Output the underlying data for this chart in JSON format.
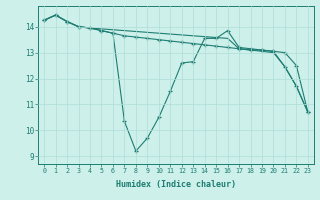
{
  "xlabel": "Humidex (Indice chaleur)",
  "background_color": "#cdf0ea",
  "grid_color": "#b0ddd8",
  "line_color": "#1e7d72",
  "xlim": [
    -0.5,
    23.5
  ],
  "ylim": [
    8.7,
    14.8
  ],
  "xticks": [
    0,
    1,
    2,
    3,
    4,
    5,
    6,
    7,
    8,
    9,
    10,
    11,
    12,
    13,
    14,
    15,
    16,
    17,
    18,
    19,
    20,
    21,
    22,
    23
  ],
  "yticks": [
    9,
    10,
    11,
    12,
    13,
    14
  ],
  "series": [
    {
      "x": [
        0,
        1,
        2,
        3,
        4,
        5,
        6,
        7,
        8,
        9,
        10,
        11,
        12,
        13,
        14,
        15,
        16,
        17,
        18,
        19,
        20,
        21,
        22,
        23
      ],
      "y": [
        14.25,
        14.45,
        14.2,
        14.0,
        13.95,
        13.85,
        13.75,
        13.65,
        13.6,
        13.55,
        13.5,
        13.45,
        13.4,
        13.35,
        13.3,
        13.25,
        13.2,
        13.15,
        13.1,
        13.1,
        13.05,
        13.0,
        12.5,
        10.7
      ],
      "marker": "+",
      "markersize": 3.5,
      "linewidth": 0.8,
      "linestyle": "-"
    },
    {
      "x": [
        0,
        1,
        2,
        3,
        4,
        5,
        6,
        7,
        8,
        9,
        10,
        11,
        12,
        13,
        14,
        15,
        16,
        17,
        18,
        19,
        20,
        21,
        22,
        23
      ],
      "y": [
        14.25,
        14.45,
        14.2,
        14.0,
        13.95,
        13.85,
        13.75,
        10.35,
        9.2,
        9.7,
        10.5,
        11.5,
        12.6,
        12.65,
        13.55,
        13.55,
        13.85,
        13.2,
        13.15,
        13.1,
        13.05,
        12.45,
        11.7,
        10.7
      ],
      "marker": "+",
      "markersize": 3.5,
      "linewidth": 0.8,
      "linestyle": "-"
    },
    {
      "x": [
        0,
        1,
        2,
        3,
        4,
        16,
        17,
        18,
        19,
        20,
        21,
        22,
        23
      ],
      "y": [
        14.25,
        14.45,
        14.2,
        14.0,
        13.95,
        13.55,
        13.15,
        13.1,
        13.05,
        13.0,
        12.45,
        11.7,
        10.7
      ],
      "marker": null,
      "markersize": 0,
      "linewidth": 0.8,
      "linestyle": "-"
    }
  ]
}
